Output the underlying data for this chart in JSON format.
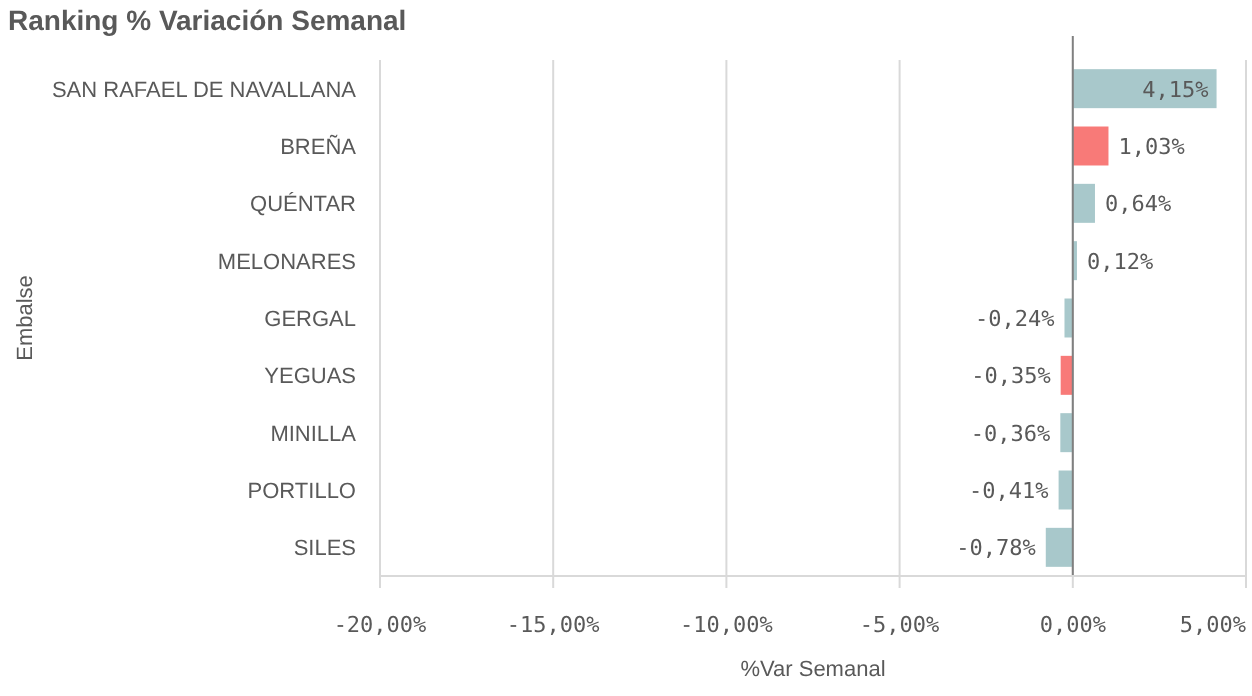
{
  "chart_data": {
    "type": "bar",
    "orientation": "horizontal",
    "title": "Ranking % Variación Semanal",
    "xlabel": "%Var Semanal",
    "ylabel": "Embalse",
    "categories": [
      "SAN RAFAEL DE NAVALLANA",
      "BREÑA",
      "QUÉNTAR",
      "MELONARES",
      "GERGAL",
      "YEGUAS",
      "MINILLA",
      "PORTILLO",
      "SILES"
    ],
    "values": [
      4.15,
      1.03,
      0.64,
      0.12,
      -0.24,
      -0.35,
      -0.36,
      -0.41,
      -0.78
    ],
    "colors": [
      "#a8c8cb",
      "#f87a78",
      "#a8c8cb",
      "#a8c8cb",
      "#a8c8cb",
      "#f87a78",
      "#a8c8cb",
      "#a8c8cb",
      "#a8c8cb"
    ],
    "value_labels": [
      "4,15%",
      "1,03%",
      "0,64%",
      "0,12%",
      "-0,24%",
      "-0,35%",
      "-0,36%",
      "-0,41%",
      "-0,78%"
    ],
    "xlim": [
      -20,
      5
    ],
    "xticks": [
      {
        "value": -20,
        "label": "-20,00%"
      },
      {
        "value": -15,
        "label": "-15,00%"
      },
      {
        "value": -10,
        "label": "-10,00%"
      },
      {
        "value": -5,
        "label": "-5,00%"
      },
      {
        "value": 0,
        "label": "0,00%"
      },
      {
        "value": 5,
        "label": "5,00%"
      }
    ],
    "grid": "x"
  }
}
